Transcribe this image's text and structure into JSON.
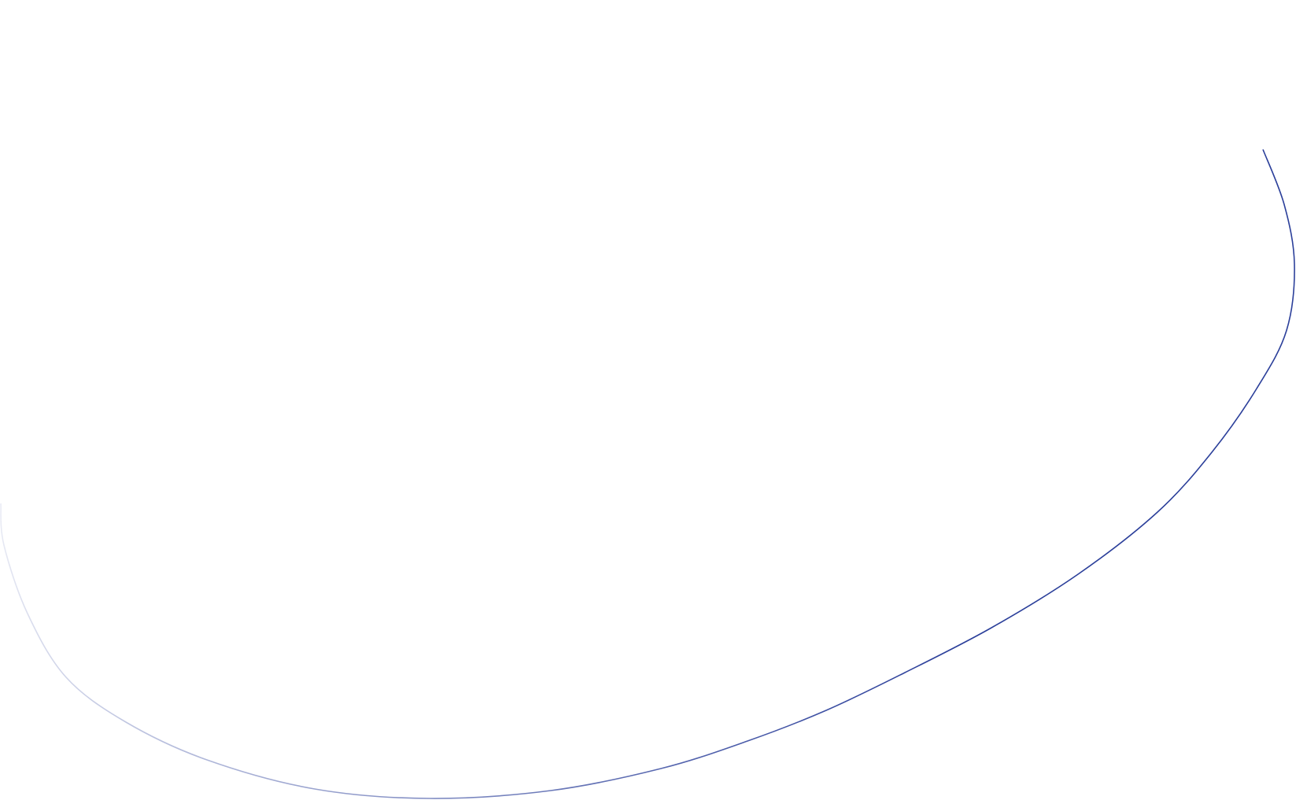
{
  "colors": {
    "background": "#ffffff",
    "curve_stroke": "#2b3f9a"
  }
}
